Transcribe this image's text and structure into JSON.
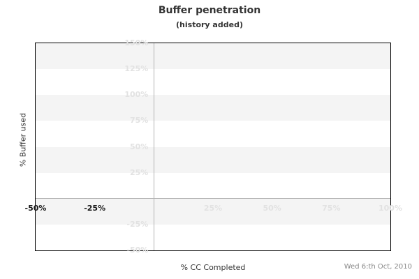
{
  "chart_data": {
    "type": "line",
    "title": "Buffer penetration",
    "subtitle": "(history added)",
    "xlabel": "% CC Completed",
    "ylabel": "% Buffer used",
    "date_annotation": "Wed 6:th Oct, 2010",
    "xlim": [
      -50,
      100
    ],
    "ylim": [
      -50,
      150
    ],
    "x_ticks": [
      {
        "value": -50,
        "label": "-50%",
        "emphasis": true
      },
      {
        "value": -25,
        "label": "-25%",
        "emphasis": true
      },
      {
        "value": 25,
        "label": "25%",
        "emphasis": false
      },
      {
        "value": 50,
        "label": "50%",
        "emphasis": false
      },
      {
        "value": 75,
        "label": "75%",
        "emphasis": false
      },
      {
        "value": 100,
        "label": "100%",
        "emphasis": false
      }
    ],
    "y_ticks": [
      {
        "value": 150,
        "label": "150%"
      },
      {
        "value": 125,
        "label": "125%"
      },
      {
        "value": 100,
        "label": "100%"
      },
      {
        "value": 75,
        "label": "75%"
      },
      {
        "value": 50,
        "label": "50%"
      },
      {
        "value": 25,
        "label": "25%"
      },
      {
        "value": 0,
        "label": ""
      },
      {
        "value": -25,
        "label": "-25%"
      },
      {
        "value": -50,
        "label": "-50%"
      }
    ],
    "series": [],
    "legend": null,
    "grid": "alternating-horizontal-bands",
    "colors": {
      "band": "#f4f4f4",
      "zero_axis_line": "#b3b3b3",
      "plot_border": "#000000",
      "faint_tick": "#e2e2e2",
      "strong_tick": "#1a1a1a",
      "title_text": "#333333",
      "date_text": "#888888"
    }
  }
}
